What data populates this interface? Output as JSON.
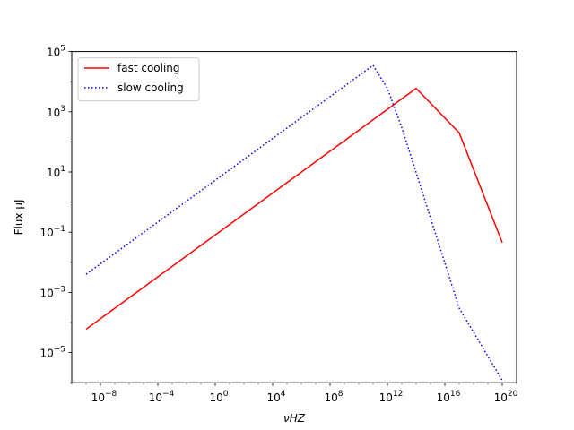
{
  "chart_data": {
    "type": "line",
    "xscale": "log",
    "yscale": "log",
    "xlim": [
      1e-10,
      1e+21
    ],
    "ylim": [
      1e-06,
      100000.0
    ],
    "xlabel": "νHZ",
    "ylabel": "Flux μJ",
    "title": "",
    "grid": false,
    "legend_position": "top-left",
    "x_ticks": [
      {
        "value": 1e-08,
        "mantissa": "10",
        "exp": "−8"
      },
      {
        "value": 0.0001,
        "mantissa": "10",
        "exp": "−4"
      },
      {
        "value": 1,
        "mantissa": "10",
        "exp": "0"
      },
      {
        "value": 10000.0,
        "mantissa": "10",
        "exp": "4"
      },
      {
        "value": 100000000.0,
        "mantissa": "10",
        "exp": "8"
      },
      {
        "value": 1000000000000.0,
        "mantissa": "10",
        "exp": "12"
      },
      {
        "value": 1e+16,
        "mantissa": "10",
        "exp": "16"
      },
      {
        "value": 1e+20,
        "mantissa": "10",
        "exp": "20"
      }
    ],
    "y_ticks": [
      {
        "value": 1e-05,
        "mantissa": "10",
        "exp": "−5"
      },
      {
        "value": 0.001,
        "mantissa": "10",
        "exp": "−3"
      },
      {
        "value": 0.1,
        "mantissa": "10",
        "exp": "−1"
      },
      {
        "value": 10,
        "mantissa": "10",
        "exp": "1"
      },
      {
        "value": 1000,
        "mantissa": "10",
        "exp": "3"
      },
      {
        "value": 100000,
        "mantissa": "10",
        "exp": "5"
      }
    ],
    "series": [
      {
        "name": "fast cooling",
        "color": "#ff0000",
        "style": "solid",
        "x": [
          1e-09,
          100000000000000.0,
          1e+17,
          1e+20
        ],
        "y": [
          6e-05,
          6000,
          200,
          0.045
        ]
      },
      {
        "name": "slow cooling",
        "color": "#0000ff",
        "style": "dotted",
        "x": [
          1e-09,
          100000000000.0,
          1000000000000.0,
          10000000000000.0,
          1e+17,
          1e+20
        ],
        "y": [
          0.004,
          35000,
          6000,
          300,
          0.0003,
          1.2e-06
        ]
      }
    ]
  }
}
